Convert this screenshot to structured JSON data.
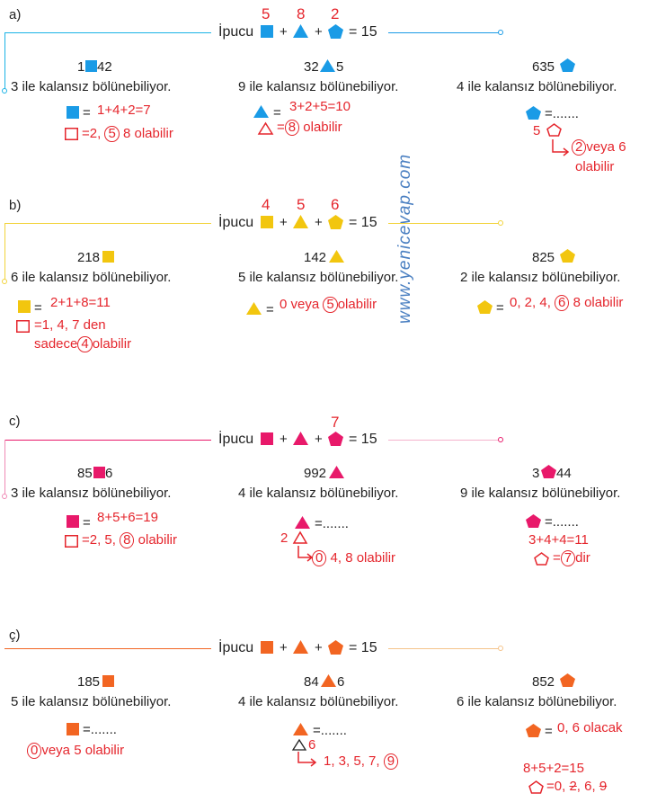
{
  "colors": {
    "blue": "#1a9be6",
    "yellow": "#f2c60f",
    "pink": "#e8196a",
    "orange": "#f26522",
    "red_ink": "#e5262d",
    "watermark": "#4a7fc1"
  },
  "watermark": "www.yenicevap.com",
  "sections": [
    {
      "label": "a)",
      "hint": {
        "word": "İpucu",
        "plus1": "+",
        "plus2": "+",
        "equals": "= 15",
        "ans_square": "5",
        "ans_triangle": "8",
        "ans_pentagon": "2"
      },
      "problems": [
        {
          "number_before": "1",
          "number_after": "42",
          "shape": "square-icon",
          "rule": "3 ile kalansız bölünebiliyor.",
          "line1_prefix": "=",
          "line1": "1+4+2=7",
          "line2": "=2,",
          "line2_circled": "5",
          "line2_after": "8 olabilir"
        },
        {
          "number_before": "32",
          "number_after": "5",
          "shape": "triangle-icon",
          "rule": "9 ile kalansız bölünebiliyor.",
          "line1_prefix": "=",
          "line1": "3+2+5=10",
          "line2": "=",
          "line2_circled": "8",
          "line2_after": "olabilir"
        },
        {
          "number_before": "635",
          "number_after": "",
          "shape": "pentagon-icon",
          "rule": "4 ile kalansız bölünebiliyor.",
          "line1_prefix": "=.......",
          "line1": "",
          "line2": "5",
          "line2_circled": "2",
          "line2_after": "veya 6",
          "line3": "olabilir"
        }
      ]
    },
    {
      "label": "b)",
      "hint": {
        "word": "İpucu",
        "plus1": "+",
        "plus2": "+",
        "equals": "= 15",
        "ans_square": "4",
        "ans_triangle": "5",
        "ans_pentagon": "6"
      },
      "problems": [
        {
          "number_before": "218",
          "number_after": "",
          "shape": "square-icon",
          "rule": "6 ile kalansız bölünebiliyor.",
          "line1_prefix": "=",
          "line1": "2+1+8=11",
          "line2": "=1, 4, 7 den",
          "line3": "sadece",
          "line3_circled": "4",
          "line3_after": "olabilir"
        },
        {
          "number_before": "142",
          "number_after": "",
          "shape": "triangle-icon",
          "rule": "5 ile kalansız bölünebiliyor.",
          "line1_prefix": "=",
          "line1": "0 veya",
          "line1_circled": "5",
          "line1_after": "olabilir"
        },
        {
          "number_before": "825",
          "number_after": "",
          "shape": "pentagon-icon",
          "rule": "2 ile kalansız bölünebiliyor.",
          "line1_prefix": "=",
          "line1": "0, 2, 4,",
          "line1_circled": "6",
          "line1_after": "8 olabilir"
        }
      ]
    },
    {
      "label": "c)",
      "hint": {
        "word": "İpucu",
        "plus1": "+",
        "plus2": "+",
        "equals": "= 15",
        "ans_pentagon": "7"
      },
      "problems": [
        {
          "number_before": "85",
          "number_after": "6",
          "shape": "square-icon",
          "rule": "3 ile kalansız bölünebiliyor.",
          "line1_prefix": "=",
          "line1": "8+5+6=19",
          "line2": "=2, 5,",
          "line2_circled": "8",
          "line2_after": "olabilir"
        },
        {
          "number_before": "992",
          "number_after": "",
          "shape": "triangle-icon",
          "rule": "4 ile kalansız bölünebiliyor.",
          "line1_prefix": "=.......",
          "line2": "2",
          "line3_circled": "0",
          "line3_after": "4, 8 olabilir"
        },
        {
          "number_before": "3",
          "number_after": "44",
          "shape": "pentagon-icon",
          "rule": "9 ile kalansız bölünebiliyor.",
          "line1_prefix": "=.......",
          "line2": "3+4+4=11",
          "line3": "=",
          "line3_circled": "7",
          "line3_after": "dir"
        }
      ]
    },
    {
      "label": "ç)",
      "hint": {
        "word": "İpucu",
        "plus1": "+",
        "plus2": "+",
        "equals": "= 15"
      },
      "problems": [
        {
          "number_before": "185",
          "number_after": "",
          "shape": "square-icon",
          "rule": "5 ile kalansız bölünebiliyor.",
          "line1_prefix": "=.......",
          "line2_circled": "0",
          "line2_after": "veya 5 olabilir"
        },
        {
          "number_before": "84",
          "number_after": "6",
          "shape": "triangle-icon",
          "rule": "4 ile kalansız bölünebiliyor.",
          "line1_prefix": "=.......",
          "line2": "6",
          "line3": "1, 3, 5, 7,",
          "line3_circled": "9"
        },
        {
          "number_before": "852",
          "number_after": "",
          "shape": "pentagon-icon",
          "rule": "6 ile kalansız bölünebiliyor.",
          "line1_prefix": "=",
          "line1": "0, 6 olacak",
          "line2": "8+5+2=15",
          "line3": "=0,",
          "line3_struck1": "2",
          "line3_mid": ", 6,",
          "line3_struck2": "9"
        }
      ]
    }
  ]
}
